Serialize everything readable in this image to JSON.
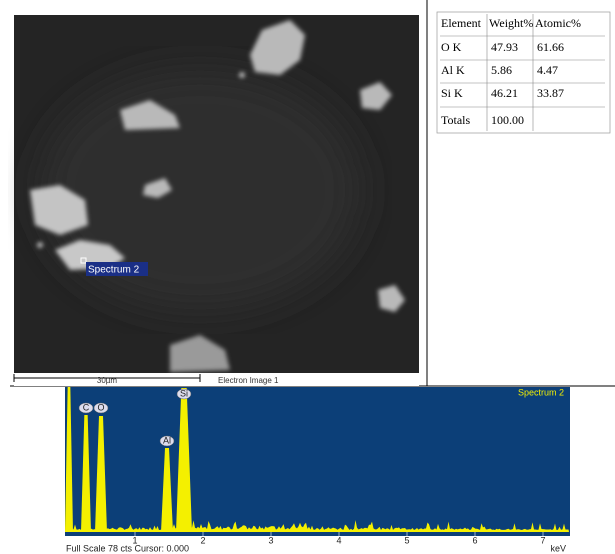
{
  "sem_image": {
    "label": "Spectrum 2",
    "scale_bar": "30µm",
    "caption": "Electron Image 1"
  },
  "table": {
    "header": [
      "Element",
      "Weight%",
      "Atomic%"
    ],
    "rows": [
      [
        "O K",
        "47.93",
        "61.66"
      ],
      [
        "Al K",
        "5.86",
        "4.47"
      ],
      [
        "Si K",
        "46.21",
        "33.87"
      ],
      [
        "Totals",
        "100.00"
      ]
    ]
  },
  "spectrum": {
    "title": "Spectrum 2",
    "peaks": [
      "C",
      "O",
      "Al",
      "Si"
    ],
    "ticks": [
      1,
      2,
      3,
      4,
      5,
      6,
      7
    ],
    "status": "Full Scale 78 cts Cursor: 0.000",
    "unit": "keV"
  }
}
